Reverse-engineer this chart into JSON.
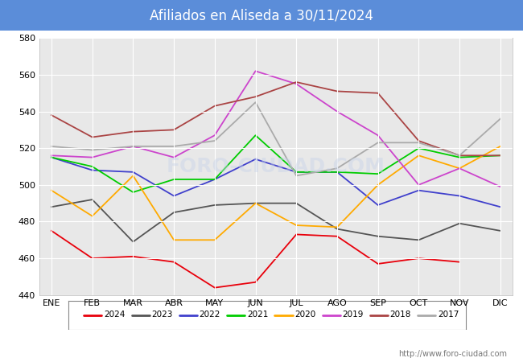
{
  "title": "Afiliados en Aliseda a 30/11/2024",
  "title_bgcolor": "#5b8dd9",
  "title_color": "white",
  "months": [
    "ENE",
    "FEB",
    "MAR",
    "ABR",
    "MAY",
    "JUN",
    "JUL",
    "AGO",
    "SEP",
    "OCT",
    "NOV",
    "DIC"
  ],
  "ylim": [
    440,
    580
  ],
  "yticks": [
    440,
    460,
    480,
    500,
    520,
    540,
    560,
    580
  ],
  "series": [
    {
      "label": "2024",
      "color": "#e8000b",
      "data": [
        475,
        460,
        461,
        458,
        444,
        447,
        473,
        472,
        457,
        460,
        458,
        null
      ]
    },
    {
      "label": "2023",
      "color": "#555555",
      "data": [
        488,
        492,
        469,
        485,
        489,
        490,
        490,
        476,
        472,
        470,
        479,
        475
      ]
    },
    {
      "label": "2022",
      "color": "#4040cc",
      "data": [
        515,
        508,
        507,
        494,
        503,
        514,
        507,
        507,
        489,
        497,
        494,
        488
      ]
    },
    {
      "label": "2021",
      "color": "#00cc00",
      "data": [
        515,
        510,
        496,
        503,
        503,
        527,
        507,
        507,
        506,
        520,
        515,
        516
      ]
    },
    {
      "label": "2020",
      "color": "#ffaa00",
      "data": [
        497,
        483,
        505,
        470,
        470,
        490,
        478,
        477,
        500,
        516,
        509,
        521
      ]
    },
    {
      "label": "2019",
      "color": "#cc44cc",
      "data": [
        516,
        515,
        521,
        515,
        527,
        562,
        555,
        540,
        527,
        500,
        509,
        499
      ]
    },
    {
      "label": "2018",
      "color": "#aa4444",
      "data": [
        538,
        526,
        529,
        530,
        543,
        548,
        556,
        551,
        550,
        524,
        516,
        516
      ]
    },
    {
      "label": "2017",
      "color": "#aaaaaa",
      "data": [
        521,
        519,
        521,
        521,
        524,
        545,
        505,
        509,
        523,
        523,
        516,
        536
      ]
    }
  ],
  "plot_bgcolor": "#e8e8e8",
  "fig_bgcolor": "white",
  "grid_color": "white",
  "watermark": "FORO-CIUDAD.COM",
  "footer_url": "http://www.foro-ciudad.com"
}
